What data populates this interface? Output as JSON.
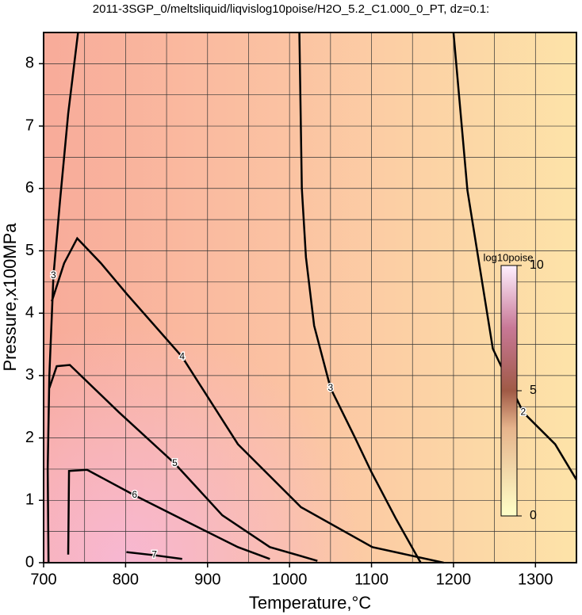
{
  "chart_data": {
    "type": "contour",
    "title": "2011-3SGP_0/meltsliquid/liqvislog10poise/H2O_5.2_C1.000_0_PT, dz=0.1:",
    "x_label": "Temperature,°C",
    "y_label": "Pressure,x100MPa",
    "xlim": [
      700,
      1350
    ],
    "ylim": [
      0,
      8.5
    ],
    "xticks": [
      700,
      800,
      900,
      1000,
      1100,
      1200,
      1300
    ],
    "xminorticks": [
      750,
      850,
      950,
      1050,
      1150,
      1250
    ],
    "yticks": [
      0,
      1,
      2,
      3,
      4,
      5,
      6,
      7,
      8
    ],
    "yminorticks": [
      0.5,
      1.5,
      2.5,
      3.5,
      4.5,
      5.5,
      6.5,
      7.5
    ],
    "grid": true,
    "line_color": "#000000",
    "contours": [
      {
        "level": 2,
        "x": [
          1200,
          1217,
          1248,
          1285,
          1324,
          1350
        ],
        "y": [
          8.5,
          5.97,
          3.43,
          2.41,
          1.9,
          1.33
        ]
      },
      {
        "level": 3,
        "x": [
          1012,
          1015,
          1020,
          1030,
          1050,
          1080,
          1100,
          1130,
          1160
        ],
        "y": [
          8.5,
          6.0,
          4.9,
          3.8,
          2.8,
          2.0,
          1.45,
          0.7,
          0.0
        ]
      },
      {
        "level": 3,
        "x": [
          742,
          730,
          720,
          712,
          707,
          705,
          706
        ],
        "y": [
          8.5,
          7.2,
          5.8,
          4.6,
          3.0,
          1.5,
          0.0
        ]
      },
      {
        "level": 4,
        "x": [
          710,
          725,
          741,
          770,
          802,
          869,
          937,
          1014,
          1101,
          1188
        ],
        "y": [
          4.19,
          4.8,
          5.2,
          4.8,
          4.3,
          3.3,
          1.9,
          0.89,
          0.25,
          0.0
        ]
      },
      {
        "level": 5,
        "x": [
          707,
          716,
          732,
          792,
          860,
          918,
          976,
          1034
        ],
        "y": [
          2.8,
          3.15,
          3.17,
          2.41,
          1.59,
          0.76,
          0.25,
          0.03
        ]
      },
      {
        "level": 6,
        "x": [
          730,
          731,
          753,
          811,
          879,
          937,
          976
        ],
        "y": [
          0.13,
          1.47,
          1.49,
          1.08,
          0.63,
          0.25,
          0.06
        ]
      },
      {
        "level": 7,
        "x": [
          801,
          835,
          869
        ],
        "y": [
          0.17,
          0.12,
          0.06
        ]
      }
    ],
    "colorbar": {
      "label": "log10poise",
      "lim": [
        0,
        10
      ],
      "ticks": [
        0,
        5,
        10
      ]
    }
  }
}
